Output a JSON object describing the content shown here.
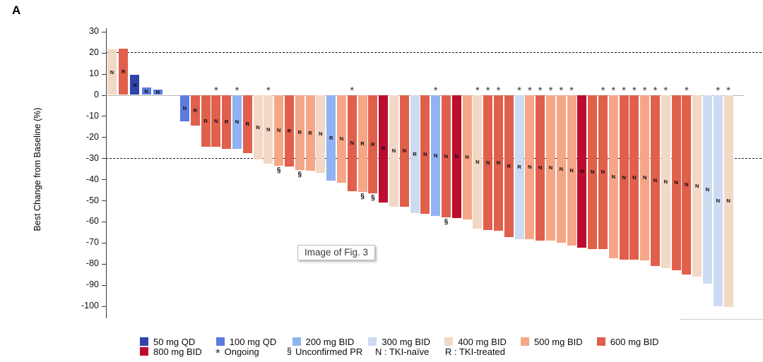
{
  "panel_label": "A",
  "watermark": {
    "text": "Image of Fig. 3"
  },
  "dose_colors": {
    "50": "#3243ae",
    "100": "#5d7ce2",
    "200": "#90b3f2",
    "300": "#cddbf2",
    "400": "#f2d9c6",
    "500": "#f5a687",
    "600": "#e0604c",
    "800": "#bc0c30"
  },
  "legend": {
    "row1": [
      {
        "swatch": "50",
        "label": "50 mg QD"
      },
      {
        "swatch": "100",
        "label": "100 mg QD"
      },
      {
        "swatch": "200",
        "label": "200 mg BID"
      },
      {
        "swatch": "300",
        "label": "300 mg BID"
      },
      {
        "swatch": "400",
        "label": "400 mg BID"
      },
      {
        "swatch": "500",
        "label": "500 mg BID"
      },
      {
        "swatch": "600",
        "label": "600 mg BID"
      }
    ],
    "row2": [
      {
        "swatch": "800",
        "label": "800 mg BID"
      },
      {
        "symbol": "*",
        "label": "Ongoing"
      },
      {
        "symbol": "§",
        "label": "Unconfirmed PR"
      },
      {
        "label": "N : TKI-naïve"
      },
      {
        "label": "R : TKI-treated"
      }
    ]
  },
  "chart_data": {
    "type": "bar",
    "subtype": "waterfall",
    "title": "",
    "xlabel": "",
    "ylabel": "Best Change from Baseline (%)",
    "ylim": [
      -100,
      30
    ],
    "yticks": [
      30,
      20,
      10,
      0,
      -10,
      -20,
      -30,
      -40,
      -50,
      -60,
      -70,
      -80,
      -90,
      -100
    ],
    "reference_lines_y": [
      20,
      -30
    ],
    "grid": false,
    "group_gap_after_bar_index": 4,
    "bar_fields": [
      "dose_mg",
      "value_pct",
      "tki_status",
      "flags"
    ],
    "flag_meanings": {
      "*": "Ongoing",
      "§": "Unconfirmed PR"
    },
    "tki_meanings": {
      "N": "TKI-naïve",
      "R": "TKI-treated"
    },
    "bars": [
      [
        "400",
        21.5,
        "N",
        ""
      ],
      [
        "600",
        22,
        "R",
        ""
      ],
      [
        "50",
        9.5,
        "N",
        ""
      ],
      [
        "100",
        3.5,
        "N",
        ""
      ],
      [
        "100",
        2.5,
        "N",
        ""
      ],
      [
        "100",
        -12.5,
        "N",
        ""
      ],
      [
        "600",
        -14.5,
        "R",
        ""
      ],
      [
        "600",
        -24.5,
        "R",
        ""
      ],
      [
        "600",
        -24.5,
        "N",
        "*"
      ],
      [
        "600",
        -25.5,
        "R",
        ""
      ],
      [
        "200",
        -25.5,
        "N",
        "*"
      ],
      [
        "600",
        -27.5,
        "R",
        ""
      ],
      [
        "400",
        -30.5,
        "N",
        ""
      ],
      [
        "400",
        -32.5,
        "N",
        "*"
      ],
      [
        "500",
        -33.5,
        "N",
        "§"
      ],
      [
        "600",
        -34,
        "R",
        ""
      ],
      [
        "500",
        -35.5,
        "R",
        "§"
      ],
      [
        "500",
        -36,
        "R",
        ""
      ],
      [
        "400",
        -37,
        "N",
        ""
      ],
      [
        "200",
        -40.5,
        "R",
        ""
      ],
      [
        "500",
        -41.5,
        "N",
        ""
      ],
      [
        "600",
        -45.5,
        "N",
        "*"
      ],
      [
        "500",
        -46,
        "R",
        "§"
      ],
      [
        "600",
        -46.5,
        "R",
        "§"
      ],
      [
        "800",
        -51,
        "R",
        ""
      ],
      [
        "400",
        -53,
        "N",
        ""
      ],
      [
        "600",
        -53,
        "N",
        ""
      ],
      [
        "300",
        -56,
        "R",
        ""
      ],
      [
        "600",
        -56.5,
        "N",
        ""
      ],
      [
        "200",
        -57.5,
        "N",
        "*"
      ],
      [
        "600",
        -58,
        "N",
        "§"
      ],
      [
        "800",
        -58.5,
        "N",
        ""
      ],
      [
        "500",
        -59,
        "N",
        ""
      ],
      [
        "400",
        -63.5,
        "N",
        "*"
      ],
      [
        "600",
        -64,
        "N",
        "*"
      ],
      [
        "600",
        -64.5,
        "N",
        "*"
      ],
      [
        "600",
        -67.5,
        "R",
        ""
      ],
      [
        "300",
        -68.5,
        "R",
        "*"
      ],
      [
        "500",
        -68.5,
        "N",
        "*"
      ],
      [
        "600",
        -69,
        "N",
        "*"
      ],
      [
        "500",
        -69,
        "N",
        "*"
      ],
      [
        "500",
        -70,
        "N",
        "*"
      ],
      [
        "500",
        -71.5,
        "N",
        "*"
      ],
      [
        "800",
        -72.5,
        "N",
        ""
      ],
      [
        "600",
        -73,
        "N",
        ""
      ],
      [
        "600",
        -73,
        "N",
        "*"
      ],
      [
        "500",
        -77.5,
        "N",
        "*"
      ],
      [
        "600",
        -78,
        "N",
        "*"
      ],
      [
        "600",
        -78,
        "N",
        "*"
      ],
      [
        "500",
        -78.5,
        "N",
        "*"
      ],
      [
        "600",
        -81,
        "N",
        "*"
      ],
      [
        "400",
        -82,
        "N",
        "*"
      ],
      [
        "600",
        -83,
        "N",
        ""
      ],
      [
        "600",
        -85,
        "N",
        "*"
      ],
      [
        "400",
        -86,
        "N",
        ""
      ],
      [
        "300",
        -89.5,
        "N",
        ""
      ],
      [
        "300",
        -100,
        "N",
        "*"
      ],
      [
        "400",
        -100.5,
        "N",
        "*"
      ]
    ]
  }
}
